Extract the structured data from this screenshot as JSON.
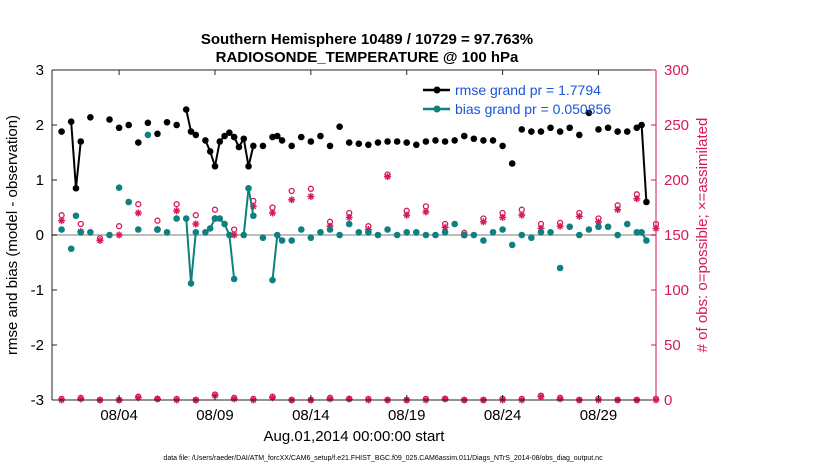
{
  "chart_data": {
    "type": "line",
    "title_line1": "Southern Hemisphere 10489 / 10729 = 97.763%",
    "title_line2": "RADIOSONDE_TEMPERATURE @ 100 hPa",
    "xlabel": "Aug.01,2014 00:00:00 start",
    "ylabel_left": "rmse and bias (model - observation)",
    "ylabel_right": "# of obs: o=possible; ×=assimilated",
    "footnote": "data file: /Users/raeder/DAI/ATM_forcXX/CAM6_setup/f.e21.FHIST_BGC.f09_025.CAM6assim.011/Diags_NTrS_2014-08/obs_diag_output.nc",
    "x_range": [
      0.5,
      32
    ],
    "x_ticks": [
      {
        "day": 4,
        "label": "08/04"
      },
      {
        "day": 9,
        "label": "08/09"
      },
      {
        "day": 14,
        "label": "08/14"
      },
      {
        "day": 19,
        "label": "08/19"
      },
      {
        "day": 24,
        "label": "08/24"
      },
      {
        "day": 29,
        "label": "08/29"
      }
    ],
    "ylim_left": [
      -3,
      3
    ],
    "yticks_left": [
      "-3",
      "-2",
      "-1",
      "0",
      "1",
      "2",
      "3"
    ],
    "ylim_right": [
      0,
      300
    ],
    "yticks_right": [
      "0",
      "50",
      "100",
      "150",
      "200",
      "250",
      "300"
    ],
    "zero_line": 0,
    "legend": [
      {
        "label": "rmse grand pr = 1.7794",
        "color": "#000000"
      },
      {
        "label": "bias grand pr = 0.050856",
        "color": "#0e8080"
      }
    ],
    "colors": {
      "rmse": "#000000",
      "bias": "#0e8080",
      "obs": "#d6195c",
      "zero": "#bdbdbd"
    },
    "series": [
      {
        "name": "rmse",
        "points": [
          [
            1,
            1.88
          ],
          [
            1.5,
            2.06
          ],
          [
            1.75,
            0.85
          ],
          [
            2,
            1.7
          ],
          [
            2.5,
            2.14
          ],
          [
            3.5,
            2.1
          ],
          [
            4,
            1.95
          ],
          [
            4.5,
            2.0
          ],
          [
            5,
            1.68
          ],
          [
            5.5,
            2.04
          ],
          [
            6,
            1.84
          ],
          [
            6.5,
            2.05
          ],
          [
            7,
            2.0
          ],
          [
            7.5,
            2.28
          ],
          [
            7.75,
            1.88
          ],
          [
            8,
            1.82
          ],
          [
            8.5,
            1.72
          ],
          [
            8.75,
            1.52
          ],
          [
            9,
            1.25
          ],
          [
            9.25,
            1.7
          ],
          [
            9.5,
            1.8
          ],
          [
            9.75,
            1.86
          ],
          [
            10,
            1.78
          ],
          [
            10.25,
            1.6
          ],
          [
            10.5,
            1.75
          ],
          [
            10.75,
            1.25
          ],
          [
            11,
            1.62
          ],
          [
            11.5,
            1.62
          ],
          [
            12,
            1.78
          ],
          [
            12.25,
            1.8
          ],
          [
            12.5,
            1.72
          ],
          [
            13,
            1.62
          ],
          [
            13.5,
            1.78
          ],
          [
            14,
            1.7
          ],
          [
            14.5,
            1.8
          ],
          [
            15,
            1.62
          ],
          [
            15.5,
            1.97
          ],
          [
            16,
            1.68
          ],
          [
            16.5,
            1.66
          ],
          [
            17,
            1.64
          ],
          [
            17.5,
            1.68
          ],
          [
            18,
            1.7
          ],
          [
            18.5,
            1.7
          ],
          [
            19,
            1.68
          ],
          [
            19.5,
            1.64
          ],
          [
            20,
            1.7
          ],
          [
            20.5,
            1.72
          ],
          [
            21,
            1.7
          ],
          [
            21.5,
            1.72
          ],
          [
            22,
            1.8
          ],
          [
            22.5,
            1.75
          ],
          [
            23,
            1.72
          ],
          [
            23.5,
            1.72
          ],
          [
            24,
            1.62
          ],
          [
            24.5,
            1.3
          ],
          [
            25,
            1.92
          ],
          [
            25.5,
            1.88
          ],
          [
            26,
            1.88
          ],
          [
            26.5,
            1.95
          ],
          [
            27,
            1.88
          ],
          [
            27.5,
            1.95
          ],
          [
            28,
            1.82
          ],
          [
            28.5,
            2.22
          ],
          [
            29,
            1.92
          ],
          [
            29.5,
            1.95
          ],
          [
            30,
            1.88
          ],
          [
            30.5,
            1.88
          ],
          [
            31,
            1.95
          ],
          [
            31.25,
            2.0
          ],
          [
            31.5,
            0.6
          ]
        ]
      },
      {
        "name": "bias",
        "points": [
          [
            1,
            0.1
          ],
          [
            1.5,
            -0.25
          ],
          [
            1.75,
            0.35
          ],
          [
            2,
            0.05
          ],
          [
            2.5,
            0.05
          ],
          [
            3.5,
            0.0
          ],
          [
            4,
            0.86
          ],
          [
            4.5,
            0.6
          ],
          [
            5,
            0.1
          ],
          [
            5.5,
            1.82
          ],
          [
            6,
            0.1
          ],
          [
            6.5,
            0.05
          ],
          [
            7,
            0.3
          ],
          [
            7.5,
            0.3
          ],
          [
            7.75,
            -0.88
          ],
          [
            8,
            0.05
          ],
          [
            8.5,
            0.05
          ],
          [
            8.75,
            0.12
          ],
          [
            9,
            0.3
          ],
          [
            9.25,
            0.3
          ],
          [
            9.5,
            0.2
          ],
          [
            9.75,
            0.0
          ],
          [
            10,
            -0.8
          ],
          [
            10.5,
            0.0
          ],
          [
            10.75,
            0.85
          ],
          [
            11,
            0.35
          ],
          [
            11.5,
            -0.05
          ],
          [
            12,
            -0.82
          ],
          [
            12.25,
            0.0
          ],
          [
            12.5,
            -0.1
          ],
          [
            13,
            -0.1
          ],
          [
            13.5,
            0.1
          ],
          [
            14,
            -0.05
          ],
          [
            14.5,
            0.05
          ],
          [
            15,
            0.1
          ],
          [
            15.5,
            0.0
          ],
          [
            16,
            0.2
          ],
          [
            16.5,
            0.05
          ],
          [
            17,
            0.05
          ],
          [
            17.5,
            0.0
          ],
          [
            18,
            0.1
          ],
          [
            18.5,
            0.0
          ],
          [
            19,
            0.05
          ],
          [
            19.5,
            0.05
          ],
          [
            20,
            0.0
          ],
          [
            20.5,
            0.0
          ],
          [
            21,
            0.05
          ],
          [
            21.5,
            0.2
          ],
          [
            22,
            0.0
          ],
          [
            22.5,
            0.0
          ],
          [
            23,
            -0.1
          ],
          [
            23.5,
            0.05
          ],
          [
            24,
            0.1
          ],
          [
            24.5,
            -0.18
          ],
          [
            25,
            0.0
          ],
          [
            25.5,
            -0.05
          ],
          [
            26,
            0.05
          ],
          [
            26.5,
            0.05
          ],
          [
            27,
            -0.6
          ],
          [
            27.5,
            0.15
          ],
          [
            28,
            0.0
          ],
          [
            28.5,
            0.1
          ],
          [
            29,
            0.15
          ],
          [
            29.5,
            0.15
          ],
          [
            30,
            0.0
          ],
          [
            30.5,
            0.2
          ],
          [
            31,
            0.05
          ],
          [
            31.25,
            0.05
          ],
          [
            31.5,
            -0.1
          ]
        ],
        "markers_only_before": 3.5
      },
      {
        "name": "obs_possible",
        "points": [
          [
            1,
            168
          ],
          [
            2,
            160
          ],
          [
            3,
            147
          ],
          [
            4,
            158
          ],
          [
            5,
            178
          ],
          [
            6,
            163
          ],
          [
            7,
            178
          ],
          [
            8,
            168
          ],
          [
            9,
            173
          ],
          [
            10,
            155
          ],
          [
            11,
            181
          ],
          [
            12,
            175
          ],
          [
            13,
            190
          ],
          [
            14,
            192
          ],
          [
            15,
            162
          ],
          [
            16,
            170
          ],
          [
            17,
            158
          ],
          [
            18,
            205
          ],
          [
            19,
            172
          ],
          [
            20,
            176
          ],
          [
            21,
            160
          ],
          [
            22,
            152
          ],
          [
            23,
            165
          ],
          [
            24,
            170
          ],
          [
            25,
            173
          ],
          [
            26,
            160
          ],
          [
            27,
            161
          ],
          [
            28,
            170
          ],
          [
            29,
            165
          ],
          [
            30,
            177
          ],
          [
            31,
            187
          ],
          [
            32,
            160
          ]
        ]
      },
      {
        "name": "obs_assimilated",
        "points": [
          [
            1,
            163
          ],
          [
            2,
            153
          ],
          [
            3,
            145
          ],
          [
            4,
            150
          ],
          [
            5,
            170
          ],
          [
            6,
            155
          ],
          [
            7,
            172
          ],
          [
            8,
            160
          ],
          [
            9,
            165
          ],
          [
            10,
            150
          ],
          [
            11,
            176
          ],
          [
            12,
            170
          ],
          [
            13,
            182
          ],
          [
            14,
            185
          ],
          [
            15,
            158
          ],
          [
            16,
            166
          ],
          [
            17,
            155
          ],
          [
            18,
            203
          ],
          [
            19,
            168
          ],
          [
            20,
            171
          ],
          [
            21,
            157
          ],
          [
            22,
            150
          ],
          [
            23,
            162
          ],
          [
            24,
            166
          ],
          [
            25,
            168
          ],
          [
            26,
            156
          ],
          [
            27,
            158
          ],
          [
            28,
            167
          ],
          [
            29,
            162
          ],
          [
            30,
            173
          ],
          [
            31,
            183
          ],
          [
            32,
            156
          ]
        ]
      },
      {
        "name": "obs_bottom_possible",
        "points": [
          [
            1,
            1
          ],
          [
            2,
            2
          ],
          [
            3,
            0
          ],
          [
            4,
            0
          ],
          [
            5,
            3
          ],
          [
            6,
            1
          ],
          [
            7,
            1
          ],
          [
            8,
            0
          ],
          [
            9,
            5
          ],
          [
            10,
            2
          ],
          [
            11,
            1
          ],
          [
            12,
            3
          ],
          [
            13,
            0
          ],
          [
            14,
            0
          ],
          [
            15,
            2
          ],
          [
            16,
            1
          ],
          [
            17,
            1
          ],
          [
            18,
            0
          ],
          [
            19,
            0
          ],
          [
            20,
            1
          ],
          [
            21,
            1
          ],
          [
            22,
            0
          ],
          [
            23,
            0
          ],
          [
            24,
            1
          ],
          [
            25,
            1
          ],
          [
            26,
            4
          ],
          [
            27,
            2
          ],
          [
            28,
            0
          ],
          [
            29,
            1
          ],
          [
            30,
            0
          ],
          [
            31,
            0
          ],
          [
            32,
            1
          ]
        ]
      },
      {
        "name": "obs_bottom_assimilated",
        "points": [
          [
            1,
            0
          ],
          [
            2,
            1
          ],
          [
            3,
            0
          ],
          [
            4,
            0
          ],
          [
            5,
            2
          ],
          [
            6,
            1
          ],
          [
            7,
            0
          ],
          [
            8,
            0
          ],
          [
            9,
            4
          ],
          [
            10,
            1
          ],
          [
            11,
            0
          ],
          [
            12,
            2
          ],
          [
            13,
            0
          ],
          [
            14,
            0
          ],
          [
            15,
            1
          ],
          [
            16,
            1
          ],
          [
            17,
            0
          ],
          [
            18,
            0
          ],
          [
            19,
            0
          ],
          [
            20,
            0
          ],
          [
            21,
            1
          ],
          [
            22,
            0
          ],
          [
            23,
            0
          ],
          [
            24,
            0
          ],
          [
            25,
            0
          ],
          [
            26,
            3
          ],
          [
            27,
            1
          ],
          [
            28,
            0
          ],
          [
            29,
            0
          ],
          [
            30,
            0
          ],
          [
            31,
            0
          ],
          [
            32,
            0
          ]
        ]
      }
    ]
  }
}
